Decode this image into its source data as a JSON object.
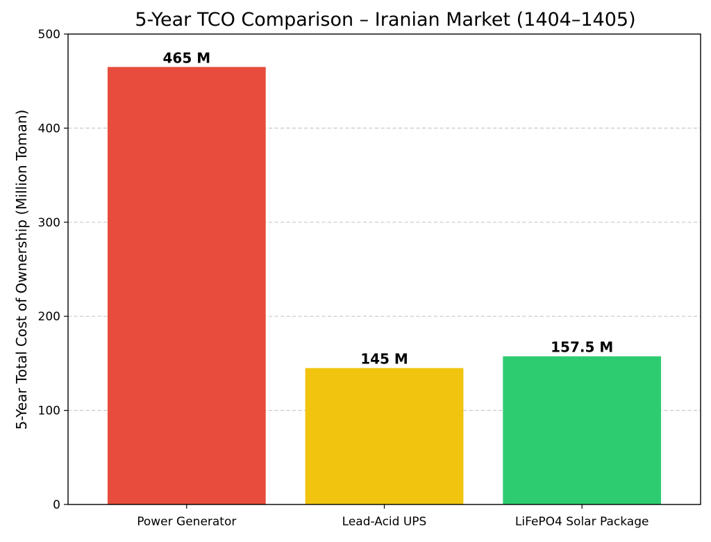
{
  "chart_data": {
    "type": "bar",
    "title": "5-Year TCO Comparison – Iranian Market (1404–1405)",
    "xlabel": "",
    "ylabel": "5-Year Total Cost of Ownership (Million Toman)",
    "categories": [
      "Power Generator",
      "Lead-Acid UPS",
      "LiFePO4 Solar Package"
    ],
    "values": [
      465,
      145,
      157.5
    ],
    "data_labels": [
      "465 M",
      "145 M",
      "157.5 M"
    ],
    "colors": [
      "#e74c3c",
      "#f1c40f",
      "#2ecc71"
    ],
    "ylim": [
      0,
      500
    ],
    "yticks": [
      0,
      100,
      200,
      300,
      400,
      500
    ],
    "grid": "y-dashed",
    "legend": "none"
  }
}
